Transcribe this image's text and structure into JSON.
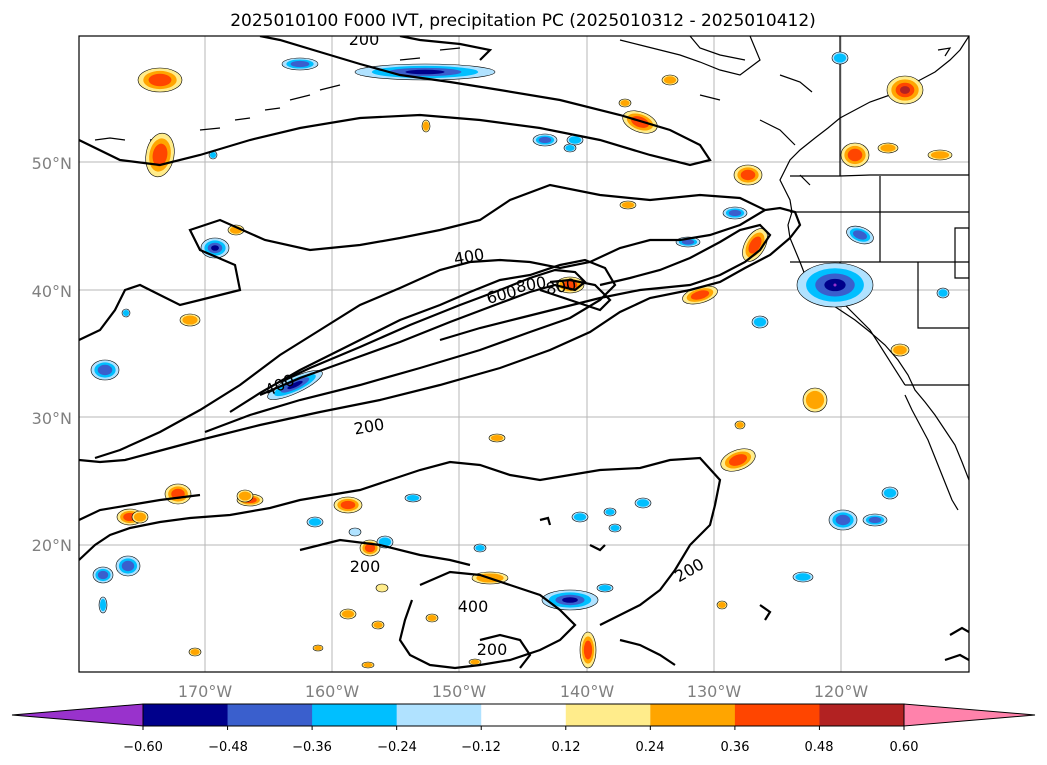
{
  "title": "2025010100 F000 IVT, precipitation PC (2025010312 - 2025010412)",
  "axes": {
    "lon_labels": [
      "170°W",
      "160°W",
      "150°W",
      "140°W",
      "130°W",
      "120°W"
    ],
    "lat_labels": [
      "50°N",
      "40°N",
      "30°N",
      "20°N"
    ]
  },
  "ivt_contours": {
    "levels": [
      "200",
      "400",
      "600",
      "800"
    ],
    "labels": [
      "200",
      "400",
      "600",
      "800",
      "400",
      "200",
      "200",
      "400",
      "200",
      "200"
    ]
  },
  "colorbar": {
    "tick_labels": [
      "−0.60",
      "−0.48",
      "−0.36",
      "−0.24",
      "−0.12",
      "0.12",
      "0.24",
      "0.36",
      "0.48",
      "0.60"
    ],
    "colors": [
      "#9932CC",
      "#00008B",
      "#3A5FCD",
      "#00BFFF",
      "#B0E2FF",
      "#FFFFFF",
      "#FFEC8B",
      "#FFA500",
      "#FF4500",
      "#B22222",
      "#FF82AB"
    ]
  },
  "palette": {
    "negative": [
      "#9932CC",
      "#00008B",
      "#3A5FCD",
      "#00BFFF",
      "#B0E2FF"
    ],
    "positive": [
      "#FFEC8B",
      "#FFA500",
      "#FF4500",
      "#B22222",
      "#FF82AB"
    ]
  }
}
